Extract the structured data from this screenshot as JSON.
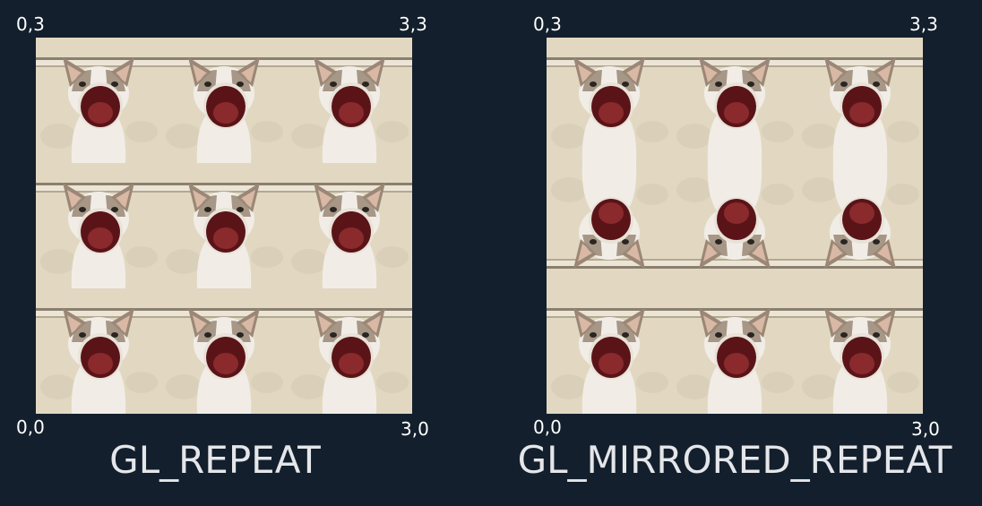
{
  "left": {
    "caption": "GL_REPEAT",
    "coords": {
      "top_left": "0,3",
      "top_right": "3,3",
      "bottom_left": "0,0",
      "bottom_right": "3,0"
    },
    "tile_flips": [
      [
        false,
        false,
        false
      ],
      [
        false,
        false,
        false
      ],
      [
        false,
        false,
        false
      ]
    ]
  },
  "right": {
    "caption": "GL_MIRRORED_REPEAT",
    "coords": {
      "top_left": "0,3",
      "top_right": "3,3",
      "bottom_left": "0,0",
      "bottom_right": "3,0"
    },
    "tile_flips": [
      [
        false,
        false,
        false
      ],
      [
        true,
        true,
        true
      ],
      [
        false,
        false,
        false
      ]
    ]
  },
  "tile_content": "pop-cat-image",
  "colors": {
    "background": "#131f2c",
    "label_text": "#ffffff",
    "caption_text": "#e4e6ea",
    "tile_wall": "#e2d8c2",
    "tile_stripe": "#8a7f6e",
    "cat_fur": "#f1ede6",
    "cat_patch": "#9a8775",
    "cat_mouth": "#5a1418",
    "cat_mouth_inner": "#8a2a2c"
  }
}
